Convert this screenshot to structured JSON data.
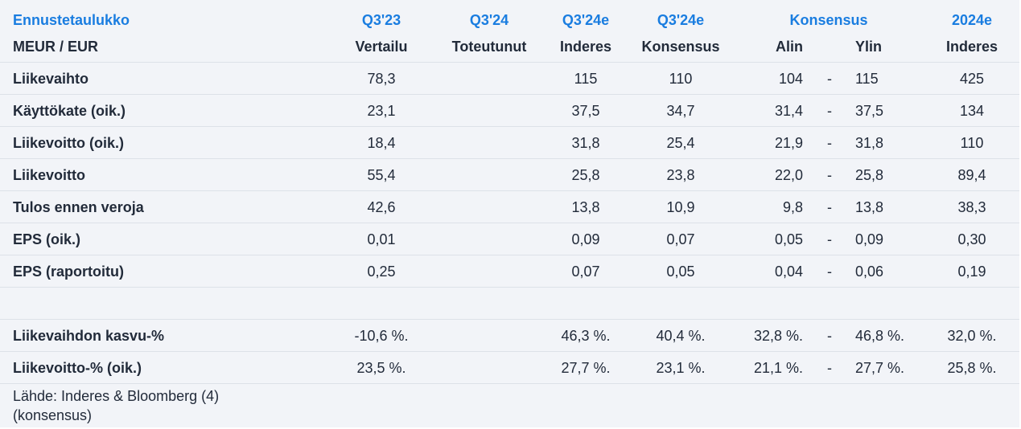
{
  "table": {
    "header_top": {
      "title": "Ennustetaulukko",
      "q323": "Q3'23",
      "q324": "Q3'24",
      "q324e_inderes": "Q3'24e",
      "q324e_consensus": "Q3'24e",
      "consensus": "Konsensus",
      "y2024e": "2024e"
    },
    "header_sub": {
      "unit": "MEUR / EUR",
      "q323": "Vertailu",
      "q324": "Toteutunut",
      "q324e_inderes": "Inderes",
      "q324e_consensus": "Konsensus",
      "low": "Alin",
      "high": "Ylin",
      "y2024e": "Inderes"
    },
    "rows": [
      {
        "label": "Liikevaihto",
        "q323": "78,3",
        "q324": "",
        "inderes": "115",
        "consensus": "110",
        "low": "104",
        "dash": "-",
        "high": "115",
        "y2024e": "425"
      },
      {
        "label": "Käyttökate (oik.)",
        "q323": "23,1",
        "q324": "",
        "inderes": "37,5",
        "consensus": "34,7",
        "low": "31,4",
        "dash": "-",
        "high": "37,5",
        "y2024e": "134"
      },
      {
        "label": "Liikevoitto (oik.)",
        "q323": "18,4",
        "q324": "",
        "inderes": "31,8",
        "consensus": "25,4",
        "low": "21,9",
        "dash": "-",
        "high": "31,8",
        "y2024e": "110"
      },
      {
        "label": "Liikevoitto",
        "q323": "55,4",
        "q324": "",
        "inderes": "25,8",
        "consensus": "23,8",
        "low": "22,0",
        "dash": "-",
        "high": "25,8",
        "y2024e": "89,4"
      },
      {
        "label": "Tulos ennen veroja",
        "q323": "42,6",
        "q324": "",
        "inderes": "13,8",
        "consensus": "10,9",
        "low": "9,8",
        "dash": "-",
        "high": "13,8",
        "y2024e": "38,3"
      },
      {
        "label": "EPS (oik.)",
        "q323": "0,01",
        "q324": "",
        "inderes": "0,09",
        "consensus": "0,07",
        "low": "0,05",
        "dash": "-",
        "high": "0,09",
        "y2024e": "0,30"
      },
      {
        "label": "EPS (raportoitu)",
        "q323": "0,25",
        "q324": "",
        "inderes": "0,07",
        "consensus": "0,05",
        "low": "0,04",
        "dash": "-",
        "high": "0,06",
        "y2024e": "0,19"
      }
    ],
    "growth_rows": [
      {
        "label": "Liikevaihdon kasvu-%",
        "q323": "-10,6 %.",
        "q324": "",
        "inderes": "46,3 %.",
        "consensus": "40,4 %.",
        "low": "32,8 %.",
        "dash": "-",
        "high": "46,8 %.",
        "y2024e": "32,0 %."
      },
      {
        "label": "Liikevoitto-% (oik.)",
        "q323": "23,5 %.",
        "q324": "",
        "inderes": "27,7 %.",
        "consensus": "23,1 %.",
        "low": "21,1 %.",
        "dash": "-",
        "high": "27,7 %.",
        "y2024e": "25,8 %."
      }
    ],
    "source": "Lähde: Inderes & Bloomberg (4) (konsensus)"
  },
  "colors": {
    "accent": "#1a7de0",
    "background": "#f2f4f8",
    "border": "#dde1e8",
    "text": "#222b3a"
  }
}
